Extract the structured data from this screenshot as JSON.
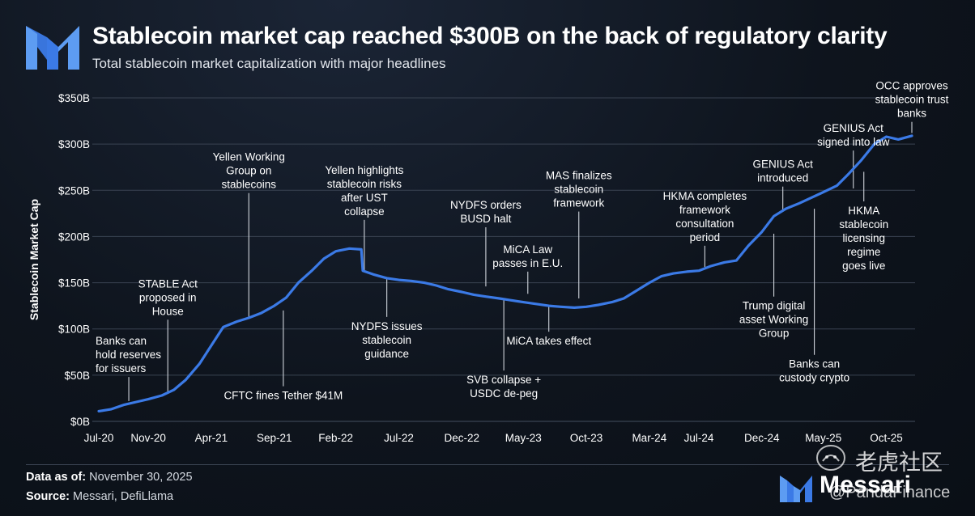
{
  "header": {
    "title": "Stablecoin market cap reached $300B on the back of regulatory clarity",
    "subtitle": "Total stablecoin market capitalization with major headlines"
  },
  "colors": {
    "line": "#3b7ae6",
    "accent": "#3b7ae6",
    "grid": "#3a4352",
    "text": "#ffffff",
    "muted": "#d4d9e0"
  },
  "footer": {
    "data_as_of_label": "Data as of:",
    "data_as_of_value": "November 30, 2025",
    "source_label": "Source:",
    "source_value": "Messari, DefiLlama"
  },
  "brand": {
    "name": "Messari"
  },
  "watermark": {
    "text": "老虎社区",
    "handle": "@PandaFinance"
  },
  "chart_data": {
    "type": "line",
    "title": "Stablecoin market cap reached $300B on the back of regulatory clarity",
    "subtitle": "Total stablecoin market capitalization with major headlines",
    "xlabel": "",
    "ylabel": "Stablecoin Market Cap",
    "x_domain": [
      2020.5,
      2025.92
    ],
    "ylim": [
      0,
      350
    ],
    "yticks": [
      0,
      50,
      100,
      150,
      200,
      250,
      300,
      350
    ],
    "ytick_labels": [
      "$0B",
      "$50B",
      "$100B",
      "$150B",
      "$200B",
      "$250B",
      "$300B",
      "$350B"
    ],
    "xticks": [
      {
        "t": 2020.5,
        "label": "Jul-20"
      },
      {
        "t": 2020.83,
        "label": "Nov-20"
      },
      {
        "t": 2021.25,
        "label": "Apr-21"
      },
      {
        "t": 2021.67,
        "label": "Sep-21"
      },
      {
        "t": 2022.08,
        "label": "Feb-22"
      },
      {
        "t": 2022.5,
        "label": "Jul-22"
      },
      {
        "t": 2022.92,
        "label": "Dec-22"
      },
      {
        "t": 2023.33,
        "label": "May-23"
      },
      {
        "t": 2023.75,
        "label": "Oct-23"
      },
      {
        "t": 2024.17,
        "label": "Mar-24"
      },
      {
        "t": 2024.5,
        "label": "Jul-24"
      },
      {
        "t": 2024.92,
        "label": "Dec-24"
      },
      {
        "t": 2025.33,
        "label": "May-25"
      },
      {
        "t": 2025.75,
        "label": "Oct-25"
      }
    ],
    "grid": true,
    "series": [
      {
        "name": "Total stablecoin market cap",
        "points": [
          [
            2020.5,
            11
          ],
          [
            2020.58,
            13
          ],
          [
            2020.67,
            18
          ],
          [
            2020.75,
            21
          ],
          [
            2020.83,
            24
          ],
          [
            2020.92,
            28
          ],
          [
            2021.0,
            34
          ],
          [
            2021.08,
            45
          ],
          [
            2021.17,
            62
          ],
          [
            2021.25,
            82
          ],
          [
            2021.33,
            102
          ],
          [
            2021.42,
            108
          ],
          [
            2021.5,
            112
          ],
          [
            2021.58,
            117
          ],
          [
            2021.67,
            125
          ],
          [
            2021.75,
            134
          ],
          [
            2021.83,
            150
          ],
          [
            2021.92,
            163
          ],
          [
            2022.0,
            176
          ],
          [
            2022.08,
            184
          ],
          [
            2022.17,
            187
          ],
          [
            2022.25,
            186
          ],
          [
            2022.26,
            163
          ],
          [
            2022.33,
            159
          ],
          [
            2022.42,
            155
          ],
          [
            2022.5,
            153
          ],
          [
            2022.58,
            152
          ],
          [
            2022.67,
            150
          ],
          [
            2022.75,
            147
          ],
          [
            2022.83,
            143
          ],
          [
            2022.92,
            140
          ],
          [
            2023.0,
            137
          ],
          [
            2023.08,
            135
          ],
          [
            2023.17,
            133
          ],
          [
            2023.25,
            131
          ],
          [
            2023.33,
            129
          ],
          [
            2023.42,
            127
          ],
          [
            2023.5,
            125
          ],
          [
            2023.58,
            124
          ],
          [
            2023.67,
            123
          ],
          [
            2023.75,
            124
          ],
          [
            2023.83,
            126
          ],
          [
            2023.92,
            129
          ],
          [
            2024.0,
            133
          ],
          [
            2024.08,
            141
          ],
          [
            2024.17,
            150
          ],
          [
            2024.25,
            157
          ],
          [
            2024.33,
            160
          ],
          [
            2024.42,
            162
          ],
          [
            2024.5,
            163
          ],
          [
            2024.58,
            168
          ],
          [
            2024.67,
            172
          ],
          [
            2024.75,
            174
          ],
          [
            2024.83,
            190
          ],
          [
            2024.92,
            205
          ],
          [
            2025.0,
            222
          ],
          [
            2025.08,
            230
          ],
          [
            2025.17,
            236
          ],
          [
            2025.25,
            242
          ],
          [
            2025.33,
            248
          ],
          [
            2025.42,
            255
          ],
          [
            2025.5,
            268
          ],
          [
            2025.58,
            282
          ],
          [
            2025.67,
            300
          ],
          [
            2025.75,
            308
          ],
          [
            2025.83,
            305
          ],
          [
            2025.92,
            309
          ]
        ]
      }
    ],
    "annotations": [
      {
        "id": "banks-reserves",
        "lines": [
          "Banks can",
          "hold reserves",
          "for issuers"
        ],
        "t": 2020.7,
        "v": 22,
        "line_end_v": 48,
        "text_pos": "above"
      },
      {
        "id": "stable-act",
        "lines": [
          "STABLE Act",
          "proposed in",
          "House"
        ],
        "t": 2020.96,
        "v": 32,
        "line_end_v": 110,
        "text_pos": "above"
      },
      {
        "id": "yellen-working-group",
        "lines": [
          "Yellen Working",
          "Group on",
          "stablecoins"
        ],
        "t": 2021.5,
        "v": 112,
        "line_end_v": 247,
        "text_pos": "above"
      },
      {
        "id": "cftc-fines",
        "lines": [
          "CFTC fines Tether $41M"
        ],
        "t": 2021.73,
        "v": 120,
        "line_end_v": 38,
        "text_pos": "below"
      },
      {
        "id": "yellen-ust",
        "lines": [
          "Yellen highlights",
          "stablecoin risks",
          "after UST",
          "collapse"
        ],
        "t": 2022.27,
        "v": 163,
        "line_end_v": 218,
        "text_pos": "above"
      },
      {
        "id": "nydfs-guidance",
        "lines": [
          "NYDFS issues",
          "stablecoin",
          "guidance"
        ],
        "t": 2022.42,
        "v": 155,
        "line_end_v": 113,
        "text_pos": "below"
      },
      {
        "id": "nydfs-busd",
        "lines": [
          "NYDFS orders",
          "BUSD halt"
        ],
        "t": 2023.08,
        "v": 146,
        "line_end_v": 210,
        "text_pos": "above"
      },
      {
        "id": "svb-collapse",
        "lines": [
          "SVB collapse +",
          "USDC de-peg"
        ],
        "t": 2023.2,
        "v": 131,
        "line_end_v": 55,
        "text_pos": "below"
      },
      {
        "id": "mica-law",
        "lines": [
          "MiCA Law",
          "passes in E.U."
        ],
        "t": 2023.36,
        "v": 138,
        "line_end_v": 162,
        "text_pos": "above"
      },
      {
        "id": "mica-effect",
        "lines": [
          "MiCA takes effect"
        ],
        "t": 2023.5,
        "v": 125,
        "line_end_v": 97,
        "text_pos": "below"
      },
      {
        "id": "mas-framework",
        "lines": [
          "MAS finalizes",
          "stablecoin",
          "framework"
        ],
        "t": 2023.7,
        "v": 133,
        "line_end_v": 227,
        "text_pos": "above"
      },
      {
        "id": "hkma-framework",
        "lines": [
          "HKMA completes",
          "framework",
          "consultation",
          "period"
        ],
        "t": 2024.54,
        "v": 167,
        "line_end_v": 190,
        "text_pos": "above"
      },
      {
        "id": "genius-introduced",
        "lines": [
          "GENIUS Act",
          "introduced"
        ],
        "t": 2025.06,
        "v": 228,
        "line_end_v": 254,
        "text_pos": "above"
      },
      {
        "id": "trump-group",
        "lines": [
          "Trump digital",
          "asset Working",
          "Group"
        ],
        "t": 2025.0,
        "v": 203,
        "line_end_v": 135,
        "text_pos": "below"
      },
      {
        "id": "banks-custody",
        "lines": [
          "Banks can",
          "custody crypto"
        ],
        "t": 2025.27,
        "v": 230,
        "line_end_v": 72,
        "text_pos": "below"
      },
      {
        "id": "genius-signed",
        "lines": [
          "GENIUS Act",
          "signed into law"
        ],
        "t": 2025.53,
        "v": 252,
        "line_end_v": 293,
        "text_pos": "above"
      },
      {
        "id": "hkma-licensing",
        "lines": [
          "HKMA",
          "stablecoin",
          "licensing",
          "regime",
          "goes live"
        ],
        "t": 2025.6,
        "v": 270,
        "line_end_v": 238,
        "text_pos": "below"
      },
      {
        "id": "occ-banks",
        "lines": [
          "OCC approves",
          "stablecoin trust",
          "banks"
        ],
        "t": 2025.92,
        "v": 312,
        "line_end_v": 324,
        "text_pos": "above"
      }
    ]
  }
}
